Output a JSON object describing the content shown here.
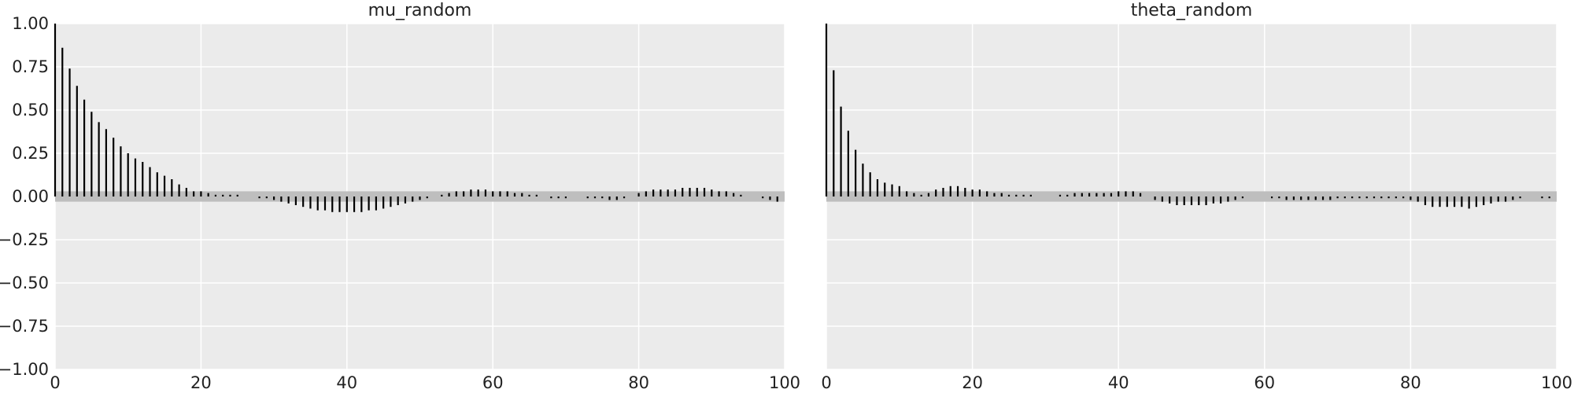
{
  "chart_data": [
    {
      "type": "bar",
      "title": "mu_random",
      "xlim": [
        0,
        100
      ],
      "ylim": [
        -1,
        1
      ],
      "xticks": [
        "0",
        "20",
        "40",
        "60",
        "80",
        "100"
      ],
      "yticks": [
        "1.00",
        "0.75",
        "0.50",
        "0.25",
        "0.00",
        "−0.25",
        "−0.50",
        "−0.75",
        "−1.00"
      ],
      "grid": true,
      "confidence_band": 0.03,
      "lags": [
        0,
        1,
        2,
        3,
        4,
        5,
        6,
        7,
        8,
        9,
        10,
        11,
        12,
        13,
        14,
        15,
        16,
        17,
        18,
        19,
        20,
        21,
        22,
        23,
        24,
        25,
        26,
        27,
        28,
        29,
        30,
        31,
        32,
        33,
        34,
        35,
        36,
        37,
        38,
        39,
        40,
        41,
        42,
        43,
        44,
        45,
        46,
        47,
        48,
        49,
        50,
        51,
        52,
        53,
        54,
        55,
        56,
        57,
        58,
        59,
        60,
        61,
        62,
        63,
        64,
        65,
        66,
        67,
        68,
        69,
        70,
        71,
        72,
        73,
        74,
        75,
        76,
        77,
        78,
        79,
        80,
        81,
        82,
        83,
        84,
        85,
        86,
        87,
        88,
        89,
        90,
        91,
        92,
        93,
        94,
        95,
        96,
        97,
        98,
        99
      ],
      "values": [
        1.0,
        0.86,
        0.74,
        0.64,
        0.56,
        0.49,
        0.43,
        0.39,
        0.34,
        0.29,
        0.25,
        0.22,
        0.2,
        0.17,
        0.14,
        0.12,
        0.1,
        0.07,
        0.05,
        0.03,
        0.03,
        0.02,
        0.01,
        0.01,
        0.01,
        0.01,
        0.0,
        0.0,
        -0.01,
        -0.01,
        -0.02,
        -0.03,
        -0.04,
        -0.05,
        -0.06,
        -0.07,
        -0.08,
        -0.08,
        -0.09,
        -0.09,
        -0.09,
        -0.09,
        -0.09,
        -0.08,
        -0.08,
        -0.07,
        -0.06,
        -0.05,
        -0.04,
        -0.03,
        -0.02,
        -0.01,
        0.0,
        0.01,
        0.02,
        0.03,
        0.03,
        0.04,
        0.04,
        0.04,
        0.03,
        0.03,
        0.03,
        0.02,
        0.02,
        0.01,
        0.01,
        0.0,
        -0.01,
        -0.01,
        -0.01,
        0.0,
        0.0,
        -0.01,
        -0.01,
        -0.01,
        -0.02,
        -0.02,
        -0.01,
        0.0,
        0.02,
        0.03,
        0.04,
        0.04,
        0.04,
        0.04,
        0.05,
        0.05,
        0.05,
        0.05,
        0.04,
        0.03,
        0.03,
        0.02,
        0.01,
        0.0,
        0.0,
        -0.01,
        -0.02,
        -0.03
      ]
    },
    {
      "type": "bar",
      "title": "theta_random",
      "xlim": [
        0,
        100
      ],
      "ylim": [
        -1,
        1
      ],
      "xticks": [
        "0",
        "20",
        "40",
        "60",
        "80",
        "100"
      ],
      "yticks": [],
      "grid": true,
      "confidence_band": 0.03,
      "lags": [
        0,
        1,
        2,
        3,
        4,
        5,
        6,
        7,
        8,
        9,
        10,
        11,
        12,
        13,
        14,
        15,
        16,
        17,
        18,
        19,
        20,
        21,
        22,
        23,
        24,
        25,
        26,
        27,
        28,
        29,
        30,
        31,
        32,
        33,
        34,
        35,
        36,
        37,
        38,
        39,
        40,
        41,
        42,
        43,
        44,
        45,
        46,
        47,
        48,
        49,
        50,
        51,
        52,
        53,
        54,
        55,
        56,
        57,
        58,
        59,
        60,
        61,
        62,
        63,
        64,
        65,
        66,
        67,
        68,
        69,
        70,
        71,
        72,
        73,
        74,
        75,
        76,
        77,
        78,
        79,
        80,
        81,
        82,
        83,
        84,
        85,
        86,
        87,
        88,
        89,
        90,
        91,
        92,
        93,
        94,
        95,
        96,
        97,
        98,
        99
      ],
      "values": [
        1.0,
        0.73,
        0.52,
        0.38,
        0.27,
        0.19,
        0.14,
        0.1,
        0.08,
        0.07,
        0.06,
        0.03,
        0.02,
        0.01,
        0.02,
        0.04,
        0.05,
        0.06,
        0.06,
        0.05,
        0.04,
        0.04,
        0.03,
        0.02,
        0.02,
        0.01,
        0.01,
        0.01,
        0.01,
        0.0,
        0.0,
        0.0,
        0.01,
        0.01,
        0.02,
        0.02,
        0.02,
        0.02,
        0.02,
        0.02,
        0.03,
        0.03,
        0.03,
        0.02,
        0.0,
        -0.02,
        -0.03,
        -0.04,
        -0.05,
        -0.05,
        -0.05,
        -0.05,
        -0.05,
        -0.04,
        -0.04,
        -0.03,
        -0.02,
        -0.01,
        0.0,
        0.0,
        0.0,
        -0.01,
        -0.01,
        -0.02,
        -0.02,
        -0.02,
        -0.02,
        -0.02,
        -0.02,
        -0.02,
        -0.01,
        -0.01,
        -0.01,
        -0.01,
        -0.01,
        -0.01,
        -0.01,
        -0.01,
        -0.01,
        -0.01,
        -0.02,
        -0.03,
        -0.05,
        -0.06,
        -0.06,
        -0.06,
        -0.06,
        -0.06,
        -0.07,
        -0.06,
        -0.05,
        -0.04,
        -0.03,
        -0.03,
        -0.02,
        -0.01,
        0.0,
        0.0,
        -0.01,
        -0.01
      ]
    }
  ]
}
